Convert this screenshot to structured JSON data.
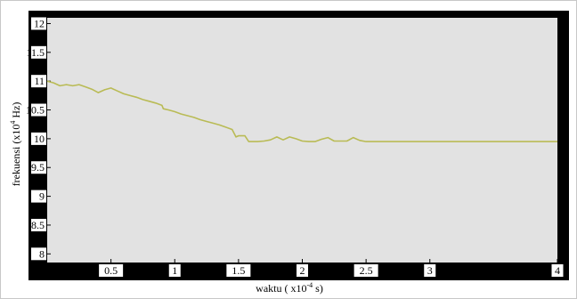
{
  "chart_data": {
    "type": "line",
    "xlabel_parts": [
      "waktu ( x10",
      "-4",
      " s)"
    ],
    "ylabel_parts": [
      "frekuensi (x10",
      "4",
      " Hz)"
    ],
    "xlim": [
      0,
      4.0
    ],
    "ylim": [
      7.85,
      12.1
    ],
    "x_ticks": [
      0.5,
      1,
      1.5,
      2,
      2.5,
      3,
      4
    ],
    "x_tick_labels": [
      "0.5",
      "1",
      "1.5",
      "2",
      "2.5",
      "3",
      "4"
    ],
    "y_ticks": [
      8,
      8.5,
      9,
      9.5,
      10,
      10.5,
      11,
      11.5,
      12
    ],
    "y_tick_labels": [
      "8",
      "8.5",
      "9",
      "9.5",
      "10",
      "10.5",
      "11",
      "11.5",
      "12"
    ],
    "grid": false,
    "colors": {
      "line": "#b9bb55",
      "plot_background": "#e2e2e2",
      "frame": "#000000",
      "outer_border": "#c8c8c8"
    },
    "series": [
      {
        "x": [
          0,
          0.05,
          0.1,
          0.15,
          0.2,
          0.25,
          0.3,
          0.35,
          0.4,
          0.45,
          0.5,
          0.55,
          0.6,
          0.65,
          0.7,
          0.75,
          0.8,
          0.85,
          0.9,
          0.91,
          0.95,
          1.0,
          1.05,
          1.1,
          1.15,
          1.2,
          1.25,
          1.3,
          1.35,
          1.4,
          1.45,
          1.48,
          1.5,
          1.55,
          1.58,
          1.6,
          1.65,
          1.7,
          1.75,
          1.8,
          1.85,
          1.9,
          1.95,
          2.0,
          2.05,
          2.1,
          2.15,
          2.2,
          2.25,
          2.3,
          2.35,
          2.4,
          2.45,
          2.5,
          3.0,
          3.5,
          4.0
        ],
        "values": [
          11.0,
          10.97,
          10.92,
          10.94,
          10.92,
          10.94,
          10.9,
          10.86,
          10.8,
          10.85,
          10.88,
          10.83,
          10.78,
          10.75,
          10.72,
          10.68,
          10.65,
          10.62,
          10.58,
          10.52,
          10.5,
          10.47,
          10.43,
          10.4,
          10.37,
          10.33,
          10.3,
          10.27,
          10.24,
          10.2,
          10.16,
          10.03,
          10.05,
          10.05,
          9.95,
          9.95,
          9.95,
          9.96,
          9.98,
          10.03,
          9.98,
          10.03,
          10.0,
          9.96,
          9.95,
          9.95,
          9.99,
          10.02,
          9.96,
          9.96,
          9.96,
          10.02,
          9.97,
          9.95,
          9.95,
          9.95,
          9.95
        ]
      }
    ]
  }
}
